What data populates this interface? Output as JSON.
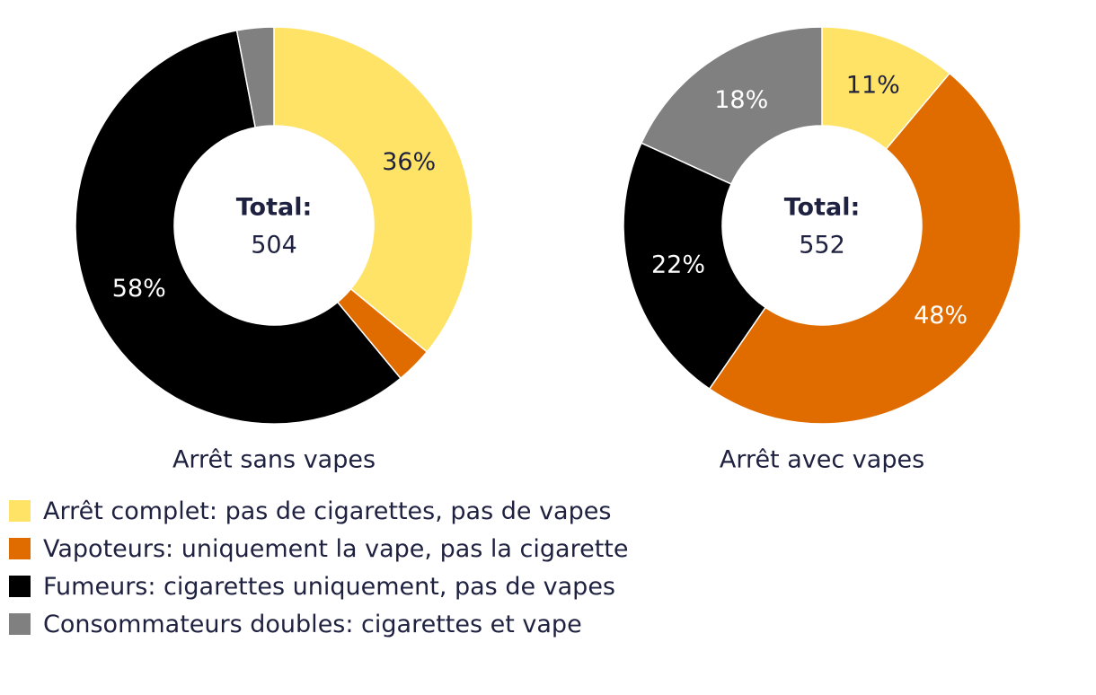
{
  "colors": {
    "arret_complet": "#ffe366",
    "vapoteurs": "#e06c00",
    "fumeurs": "#000000",
    "doubles": "#808080",
    "text_dark": "#1f2140",
    "text_light": "#ffffff"
  },
  "legend": {
    "items": [
      {
        "label": "Arrêt complet: pas de cigarettes, pas de vapes",
        "color": "#ffe366"
      },
      {
        "label": "Vapoteurs: uniquement la vape, pas la cigarette",
        "color": "#e06c00"
      },
      {
        "label": "Fumeurs: cigarettes uniquement, pas de vapes",
        "color": "#000000"
      },
      {
        "label": "Consommateurs doubles: cigarettes et vape",
        "color": "#808080"
      }
    ]
  },
  "chart_data": [
    {
      "type": "pie",
      "subtype": "donut",
      "title": "Arrêt sans vapes",
      "center_label": "Total:",
      "center_value": "504",
      "categories": [
        "Arrêt complet: pas de cigarettes, pas de vapes",
        "Vapoteurs: uniquement la vape, pas la cigarette",
        "Fumeurs: cigarettes uniquement, pas de vapes",
        "Consommateurs doubles: cigarettes et vape"
      ],
      "values": [
        36,
        3,
        58,
        3
      ],
      "data_labels": [
        "36%",
        "",
        "58%",
        ""
      ],
      "colors": [
        "#ffe366",
        "#e06c00",
        "#000000",
        "#808080"
      ]
    },
    {
      "type": "pie",
      "subtype": "donut",
      "title": "Arrêt avec vapes",
      "center_label": "Total:",
      "center_value": "552",
      "categories": [
        "Arrêt complet: pas de cigarettes, pas de vapes",
        "Vapoteurs: uniquement la vape, pas la cigarette",
        "Fumeurs: cigarettes uniquement, pas de vapes",
        "Consommateurs doubles: cigarettes et vape"
      ],
      "values": [
        11,
        48,
        22,
        18
      ],
      "data_labels": [
        "11%",
        "48%",
        "22%",
        "18%"
      ],
      "colors": [
        "#ffe366",
        "#e06c00",
        "#000000",
        "#808080"
      ]
    }
  ]
}
